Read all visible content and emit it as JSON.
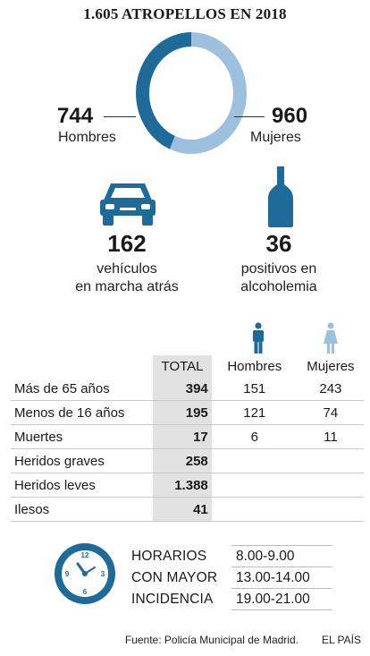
{
  "title": "1.605 ATROPELLOS EN 2018",
  "colors": {
    "dark_blue": "#1e6a99",
    "light_blue": "#9cc0de",
    "table_total_bg": "#e2e2e2"
  },
  "donut": {
    "hombres_value": "744",
    "hombres_label": "Hombres",
    "mujeres_value": "960",
    "mujeres_label": "Mujeres"
  },
  "stats": [
    {
      "value": "162",
      "label_line1": "vehículos",
      "label_line2": "en marcha atrás",
      "icon": "car-icon"
    },
    {
      "value": "36",
      "label_line1": "positivos en",
      "label_line2": "alcoholemia",
      "icon": "bottle-icon"
    }
  ],
  "table": {
    "headers": {
      "total": "TOTAL",
      "hombres": "Hombres",
      "mujeres": "Mujeres"
    },
    "rows": [
      {
        "label": "Más de 65 años",
        "total": "394",
        "hombres": "151",
        "mujeres": "243"
      },
      {
        "label": "Menos de 16 años",
        "total": "195",
        "hombres": "121",
        "mujeres": "74"
      },
      {
        "label": "Muertes",
        "total": "17",
        "hombres": "6",
        "mujeres": "11"
      },
      {
        "label": "Heridos graves",
        "total": "258",
        "hombres": "",
        "mujeres": ""
      },
      {
        "label": "Heridos leves",
        "total": "1.388",
        "hombres": "",
        "mujeres": ""
      },
      {
        "label": "Ilesos",
        "total": "41",
        "hombres": "",
        "mujeres": ""
      }
    ]
  },
  "schedule": {
    "label_lines": [
      "HORARIOS",
      "CON MAYOR",
      "INCIDENCIA"
    ],
    "times": [
      "8.00-9.00",
      "13.00-14.00",
      "19.00-21.00"
    ]
  },
  "source": "Fuente: Policía Municipal de Madrid.",
  "publisher": "EL PAÍS",
  "chart_data": {
    "type": "pie",
    "title": "1.605 ATROPELLOS EN 2018",
    "categories": [
      "Hombres",
      "Mujeres"
    ],
    "values": [
      744,
      960
    ],
    "colors": [
      "#1e6a99",
      "#9cc0de"
    ]
  }
}
